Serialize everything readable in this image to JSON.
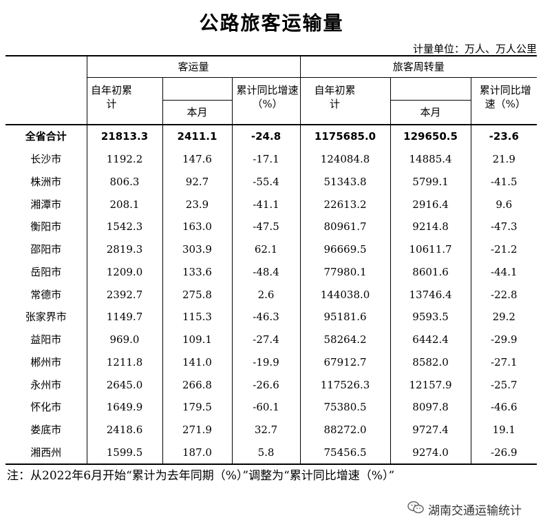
{
  "title": "公路旅客运输量",
  "unit": "计量单位：万人、万人公里",
  "headers": {
    "group_passenger": "客运量",
    "group_turnover": "旅客周转量",
    "ytd": "自年初累计",
    "month": "本月",
    "yoy": "累计同比增速（%）"
  },
  "rows": [
    {
      "region": "全省合计",
      "pax_ytd": "21813.3",
      "pax_month": "2411.1",
      "pax_yoy": "-24.8",
      "turn_ytd": "1175685.0",
      "turn_month": "129650.5",
      "turn_yoy": "-23.6"
    },
    {
      "region": "长沙市",
      "pax_ytd": "1192.2",
      "pax_month": "147.6",
      "pax_yoy": "-17.1",
      "turn_ytd": "124084.8",
      "turn_month": "14885.4",
      "turn_yoy": "21.9"
    },
    {
      "region": "株洲市",
      "pax_ytd": "806.3",
      "pax_month": "92.7",
      "pax_yoy": "-55.4",
      "turn_ytd": "51343.8",
      "turn_month": "5799.1",
      "turn_yoy": "-41.5"
    },
    {
      "region": "湘潭市",
      "pax_ytd": "208.1",
      "pax_month": "23.9",
      "pax_yoy": "-41.1",
      "turn_ytd": "22613.2",
      "turn_month": "2916.4",
      "turn_yoy": "9.6"
    },
    {
      "region": "衡阳市",
      "pax_ytd": "1542.3",
      "pax_month": "163.0",
      "pax_yoy": "-47.5",
      "turn_ytd": "80961.7",
      "turn_month": "9214.8",
      "turn_yoy": "-47.3"
    },
    {
      "region": "邵阳市",
      "pax_ytd": "2819.3",
      "pax_month": "303.9",
      "pax_yoy": "62.1",
      "turn_ytd": "96669.5",
      "turn_month": "10611.7",
      "turn_yoy": "-21.2"
    },
    {
      "region": "岳阳市",
      "pax_ytd": "1209.0",
      "pax_month": "133.6",
      "pax_yoy": "-48.4",
      "turn_ytd": "77980.1",
      "turn_month": "8601.6",
      "turn_yoy": "-44.1"
    },
    {
      "region": "常德市",
      "pax_ytd": "2392.7",
      "pax_month": "275.8",
      "pax_yoy": "2.6",
      "turn_ytd": "144038.0",
      "turn_month": "13746.4",
      "turn_yoy": "-22.8"
    },
    {
      "region": "张家界市",
      "pax_ytd": "1149.7",
      "pax_month": "115.3",
      "pax_yoy": "-46.3",
      "turn_ytd": "95181.6",
      "turn_month": "9593.5",
      "turn_yoy": "29.2"
    },
    {
      "region": "益阳市",
      "pax_ytd": "969.0",
      "pax_month": "109.1",
      "pax_yoy": "-27.4",
      "turn_ytd": "58264.2",
      "turn_month": "6442.4",
      "turn_yoy": "-29.9"
    },
    {
      "region": "郴州市",
      "pax_ytd": "1211.8",
      "pax_month": "141.0",
      "pax_yoy": "-19.9",
      "turn_ytd": "67912.7",
      "turn_month": "8582.0",
      "turn_yoy": "-27.1"
    },
    {
      "region": "永州市",
      "pax_ytd": "2645.0",
      "pax_month": "266.8",
      "pax_yoy": "-26.6",
      "turn_ytd": "117526.3",
      "turn_month": "12157.9",
      "turn_yoy": "-25.7"
    },
    {
      "region": "怀化市",
      "pax_ytd": "1649.9",
      "pax_month": "179.5",
      "pax_yoy": "-60.1",
      "turn_ytd": "75380.5",
      "turn_month": "8097.8",
      "turn_yoy": "-46.6"
    },
    {
      "region": "娄底市",
      "pax_ytd": "2418.6",
      "pax_month": "271.9",
      "pax_yoy": "32.7",
      "turn_ytd": "88272.0",
      "turn_month": "9727.4",
      "turn_yoy": "19.1"
    },
    {
      "region": "湘西州",
      "pax_ytd": "1599.5",
      "pax_month": "187.0",
      "pax_yoy": "5.8",
      "turn_ytd": "75456.5",
      "turn_month": "9274.0",
      "turn_yoy": "-26.9"
    }
  ],
  "note": "注：从2022年6月开始“累计为去年同期（%）”调整为“累计同比增速（%）”",
  "watermark": {
    "icon": "wechat-icon",
    "text": "湖南交通运输统计"
  }
}
